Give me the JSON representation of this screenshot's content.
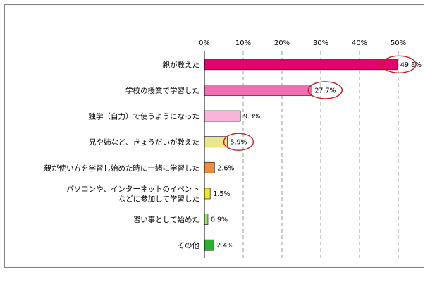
{
  "chart_data": {
    "type": "bar",
    "orientation": "horizontal",
    "categories": [
      "親が教えた",
      "学校の授業で学習した",
      "独学（自力）で使うようになった",
      "兄や姉など、きょうだいが教えた",
      "親が使い方を学習し始めた時に一緒に学習した",
      [
        "パソコンや、インターネットのイベント",
        "などに参加して学習した"
      ],
      "習い事として始めた",
      "その他"
    ],
    "values": [
      49.8,
      27.7,
      9.3,
      5.9,
      2.6,
      1.5,
      0.9,
      2.4
    ],
    "value_labels": [
      "49.8%",
      "27.7%",
      "9.3%",
      "5.9%",
      "2.6%",
      "1.5%",
      "0.9%",
      "2.4%"
    ],
    "xlim": [
      0,
      50
    ],
    "ticks": [
      0,
      10,
      20,
      30,
      40,
      50
    ],
    "tick_labels": [
      "0%",
      "10%",
      "20%",
      "30%",
      "40%",
      "50%"
    ],
    "grid": "vertical-dashed",
    "colors": [
      "#e6006e",
      "#f06eb4",
      "#fab4dc",
      "#ebe68c",
      "#f08c3c",
      "#f5e61e",
      "#9be664",
      "#28b428"
    ],
    "highlighted_indices": [
      0,
      1,
      3
    ],
    "highlight_color": "#c81e1e"
  }
}
